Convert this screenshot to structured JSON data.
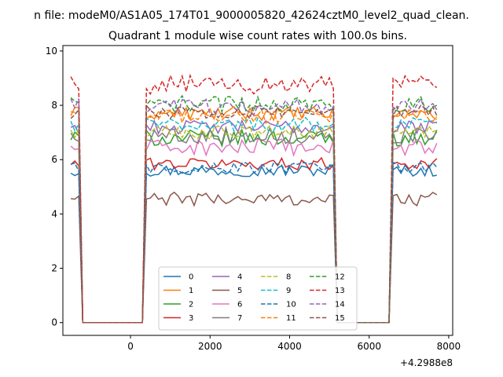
{
  "chart_data": {
    "type": "line",
    "suptitle": "n file: modeM0/AS1A05_174T01_9000005820_42624cztM0_level2_quad_clean.",
    "title": "Quadrant 1 module wise count rates with 100.0s bins.",
    "xlabel": "",
    "ylabel": "",
    "x_offset_label": "+4.2988e8",
    "xlim": [
      -1700,
      8100
    ],
    "ylim": [
      -0.47,
      10.2
    ],
    "x_ticks": [
      0,
      2000,
      4000,
      6000,
      8000
    ],
    "y_ticks": [
      0,
      2,
      4,
      6,
      8,
      10
    ],
    "grid": false,
    "legend_placement": "lower-center",
    "legend_columns": 4,
    "segments": [
      {
        "from": -1500,
        "to": -1300,
        "phase": "on"
      },
      {
        "from": -1300,
        "to": 300,
        "phase": "off"
      },
      {
        "from": 300,
        "to": 5100,
        "phase": "on"
      },
      {
        "from": 5200,
        "to": 6500,
        "phase": "off"
      },
      {
        "from": 6600,
        "to": 7700,
        "phase": "on"
      }
    ],
    "series": [
      {
        "name": "0",
        "color": "#1f77b4",
        "dash": "solid",
        "level": 5.6,
        "noise": 0.22
      },
      {
        "name": "1",
        "color": "#ff7f0e",
        "dash": "solid",
        "level": 7.7,
        "noise": 0.25
      },
      {
        "name": "2",
        "color": "#2ca02c",
        "dash": "solid",
        "level": 6.8,
        "noise": 0.3
      },
      {
        "name": "3",
        "color": "#d62728",
        "dash": "solid",
        "level": 5.85,
        "noise": 0.22
      },
      {
        "name": "4",
        "color": "#9467bd",
        "dash": "solid",
        "level": 7.2,
        "noise": 0.25
      },
      {
        "name": "5",
        "color": "#8c564b",
        "dash": "solid",
        "level": 4.55,
        "noise": 0.25
      },
      {
        "name": "6",
        "color": "#e377c2",
        "dash": "solid",
        "level": 6.45,
        "noise": 0.3
      },
      {
        "name": "7",
        "color": "#7f7f7f",
        "dash": "solid",
        "level": 6.9,
        "noise": 0.3
      },
      {
        "name": "8",
        "color": "#bcbd22",
        "dash": "dashed",
        "level": 7.0,
        "noise": 0.25
      },
      {
        "name": "9",
        "color": "#17becf",
        "dash": "dashed",
        "level": 7.3,
        "noise": 0.25
      },
      {
        "name": "10",
        "color": "#1f77b4",
        "dash": "dashed",
        "level": 5.7,
        "noise": 0.22
      },
      {
        "name": "11",
        "color": "#ff7f0e",
        "dash": "dashed",
        "level": 7.6,
        "noise": 0.25
      },
      {
        "name": "12",
        "color": "#2ca02c",
        "dash": "dashed",
        "level": 8.05,
        "noise": 0.3
      },
      {
        "name": "13",
        "color": "#d62728",
        "dash": "dashed",
        "level": 8.75,
        "noise": 0.35
      },
      {
        "name": "14",
        "color": "#9467bd",
        "dash": "dashed",
        "level": 7.95,
        "noise": 0.3
      },
      {
        "name": "15",
        "color": "#8c564b",
        "dash": "dashed",
        "level": 7.75,
        "noise": 0.25
      }
    ]
  }
}
